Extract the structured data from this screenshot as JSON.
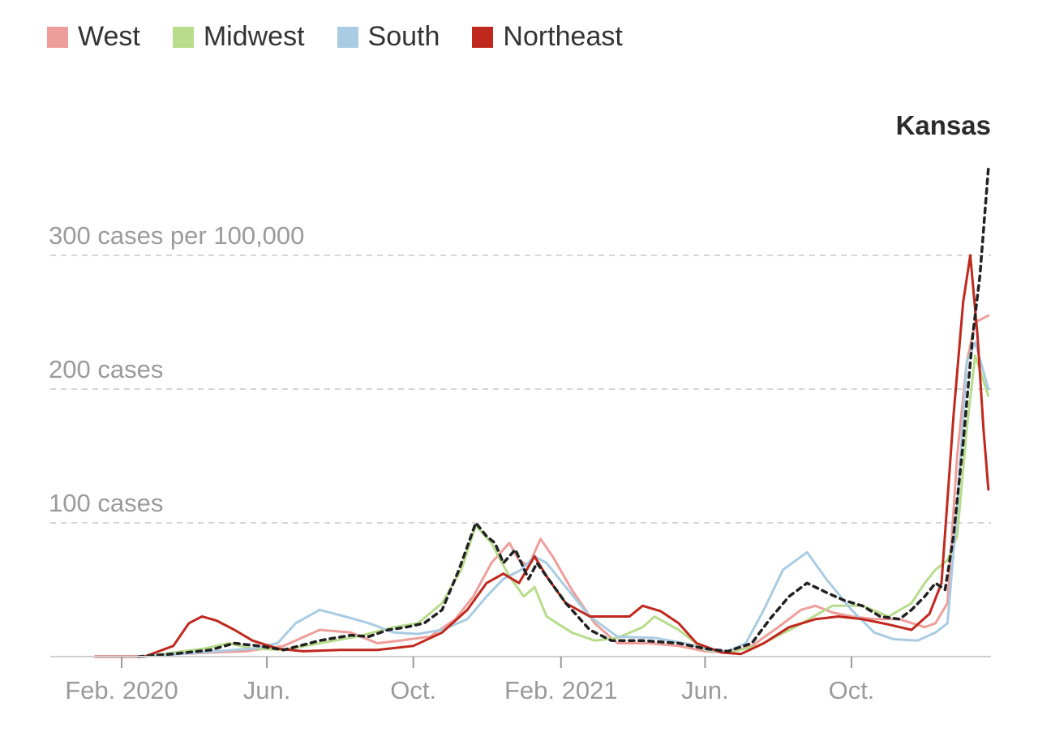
{
  "legend": {
    "items": [
      {
        "label": "West",
        "color": "#ee9e9a"
      },
      {
        "label": "Midwest",
        "color": "#b8dc8c"
      },
      {
        "label": "South",
        "color": "#a9cce3"
      },
      {
        "label": "Northeast",
        "color": "#c0281e"
      }
    ]
  },
  "chart_data": {
    "type": "line",
    "title": "",
    "xlabel": "",
    "ylabel": "",
    "annotation": "Kansas",
    "ylim": [
      0,
      360
    ],
    "xlim": [
      "2020-01-01",
      "2022-01-25"
    ],
    "y_ticks": [
      {
        "value": 100,
        "label": "100 cases"
      },
      {
        "value": 200,
        "label": "200 cases"
      },
      {
        "value": 300,
        "label": "300 cases per 100,000"
      }
    ],
    "x_ticks": [
      {
        "date": "2020-02-01",
        "label": "Feb. 2020"
      },
      {
        "date": "2020-06-01",
        "label": "Jun."
      },
      {
        "date": "2020-10-01",
        "label": "Oct."
      },
      {
        "date": "2021-02-01",
        "label": "Feb. 2021"
      },
      {
        "date": "2021-06-01",
        "label": "Jun."
      },
      {
        "date": "2021-10-01",
        "label": "Oct."
      }
    ],
    "grid": true,
    "legend_position": "top-left",
    "series": [
      {
        "name": "West",
        "color": "#ee9e9a",
        "dashed": false,
        "points": [
          [
            "2020-01-10",
            0
          ],
          [
            "2020-02-20",
            0
          ],
          [
            "2020-03-20",
            2
          ],
          [
            "2020-04-15",
            3
          ],
          [
            "2020-05-15",
            4
          ],
          [
            "2020-06-15",
            8
          ],
          [
            "2020-07-15",
            20
          ],
          [
            "2020-08-10",
            18
          ],
          [
            "2020-09-01",
            10
          ],
          [
            "2020-09-20",
            12
          ],
          [
            "2020-10-15",
            15
          ],
          [
            "2020-11-05",
            28
          ],
          [
            "2020-11-20",
            45
          ],
          [
            "2020-12-05",
            70
          ],
          [
            "2020-12-20",
            85
          ],
          [
            "2020-12-28",
            72
          ],
          [
            "2021-01-05",
            68
          ],
          [
            "2021-01-15",
            88
          ],
          [
            "2021-01-25",
            75
          ],
          [
            "2021-02-10",
            50
          ],
          [
            "2021-03-01",
            25
          ],
          [
            "2021-03-20",
            10
          ],
          [
            "2021-04-15",
            10
          ],
          [
            "2021-05-10",
            8
          ],
          [
            "2021-06-01",
            4
          ],
          [
            "2021-06-20",
            3
          ],
          [
            "2021-07-10",
            8
          ],
          [
            "2021-08-01",
            22
          ],
          [
            "2021-08-20",
            35
          ],
          [
            "2021-09-01",
            38
          ],
          [
            "2021-09-15",
            33
          ],
          [
            "2021-10-01",
            30
          ],
          [
            "2021-10-20",
            28
          ],
          [
            "2021-11-10",
            28
          ],
          [
            "2021-12-01",
            22
          ],
          [
            "2021-12-10",
            25
          ],
          [
            "2021-12-20",
            40
          ],
          [
            "2021-12-28",
            150
          ],
          [
            "2022-01-05",
            220
          ],
          [
            "2022-01-12",
            250
          ],
          [
            "2022-01-23",
            255
          ]
        ]
      },
      {
        "name": "Midwest",
        "color": "#b8dc8c",
        "dashed": false,
        "points": [
          [
            "2020-01-10",
            0
          ],
          [
            "2020-02-20",
            0
          ],
          [
            "2020-03-15",
            3
          ],
          [
            "2020-04-10",
            6
          ],
          [
            "2020-04-30",
            10
          ],
          [
            "2020-05-20",
            6
          ],
          [
            "2020-06-15",
            5
          ],
          [
            "2020-07-15",
            10
          ],
          [
            "2020-08-15",
            15
          ],
          [
            "2020-09-15",
            22
          ],
          [
            "2020-10-05",
            25
          ],
          [
            "2020-10-25",
            40
          ],
          [
            "2020-11-10",
            65
          ],
          [
            "2020-11-22",
            98
          ],
          [
            "2020-12-05",
            85
          ],
          [
            "2020-12-20",
            60
          ],
          [
            "2021-01-01",
            45
          ],
          [
            "2021-01-10",
            52
          ],
          [
            "2021-01-20",
            30
          ],
          [
            "2021-02-10",
            18
          ],
          [
            "2021-03-01",
            12
          ],
          [
            "2021-03-20",
            14
          ],
          [
            "2021-04-10",
            22
          ],
          [
            "2021-04-20",
            30
          ],
          [
            "2021-05-10",
            20
          ],
          [
            "2021-06-01",
            5
          ],
          [
            "2021-06-20",
            3
          ],
          [
            "2021-07-15",
            8
          ],
          [
            "2021-08-15",
            22
          ],
          [
            "2021-09-15",
            38
          ],
          [
            "2021-10-10",
            38
          ],
          [
            "2021-11-01",
            30
          ],
          [
            "2021-11-20",
            40
          ],
          [
            "2021-12-01",
            55
          ],
          [
            "2021-12-10",
            65
          ],
          [
            "2021-12-20",
            72
          ],
          [
            "2021-12-28",
            90
          ],
          [
            "2022-01-05",
            170
          ],
          [
            "2022-01-12",
            225
          ],
          [
            "2022-01-23",
            195
          ]
        ]
      },
      {
        "name": "South",
        "color": "#a9cce3",
        "dashed": false,
        "points": [
          [
            "2020-01-10",
            0
          ],
          [
            "2020-02-20",
            0
          ],
          [
            "2020-03-20",
            2
          ],
          [
            "2020-04-20",
            4
          ],
          [
            "2020-05-20",
            6
          ],
          [
            "2020-06-10",
            10
          ],
          [
            "2020-06-25",
            25
          ],
          [
            "2020-07-15",
            35
          ],
          [
            "2020-08-05",
            30
          ],
          [
            "2020-08-25",
            25
          ],
          [
            "2020-09-15",
            18
          ],
          [
            "2020-10-05",
            17
          ],
          [
            "2020-10-25",
            20
          ],
          [
            "2020-11-15",
            28
          ],
          [
            "2020-12-01",
            45
          ],
          [
            "2020-12-15",
            58
          ],
          [
            "2020-12-30",
            65
          ],
          [
            "2021-01-10",
            75
          ],
          [
            "2021-01-20",
            70
          ],
          [
            "2021-02-05",
            52
          ],
          [
            "2021-02-25",
            30
          ],
          [
            "2021-03-20",
            15
          ],
          [
            "2021-04-20",
            14
          ],
          [
            "2021-05-15",
            10
          ],
          [
            "2021-06-05",
            5
          ],
          [
            "2021-06-20",
            4
          ],
          [
            "2021-07-05",
            10
          ],
          [
            "2021-07-20",
            35
          ],
          [
            "2021-08-05",
            65
          ],
          [
            "2021-08-25",
            78
          ],
          [
            "2021-09-10",
            58
          ],
          [
            "2021-10-01",
            35
          ],
          [
            "2021-10-20",
            18
          ],
          [
            "2021-11-05",
            13
          ],
          [
            "2021-11-25",
            12
          ],
          [
            "2021-12-10",
            18
          ],
          [
            "2021-12-20",
            25
          ],
          [
            "2021-12-28",
            110
          ],
          [
            "2022-01-05",
            220
          ],
          [
            "2022-01-12",
            235
          ],
          [
            "2022-01-23",
            200
          ]
        ]
      },
      {
        "name": "Northeast",
        "color": "#c0281e",
        "dashed": false,
        "points": [
          [
            "2020-01-10",
            0
          ],
          [
            "2020-02-20",
            0
          ],
          [
            "2020-03-15",
            8
          ],
          [
            "2020-03-28",
            25
          ],
          [
            "2020-04-08",
            30
          ],
          [
            "2020-04-20",
            27
          ],
          [
            "2020-05-05",
            20
          ],
          [
            "2020-05-20",
            12
          ],
          [
            "2020-06-10",
            6
          ],
          [
            "2020-07-01",
            4
          ],
          [
            "2020-08-01",
            5
          ],
          [
            "2020-09-01",
            5
          ],
          [
            "2020-10-01",
            8
          ],
          [
            "2020-10-25",
            18
          ],
          [
            "2020-11-15",
            35
          ],
          [
            "2020-12-01",
            55
          ],
          [
            "2020-12-15",
            62
          ],
          [
            "2020-12-28",
            55
          ],
          [
            "2021-01-10",
            75
          ],
          [
            "2021-01-20",
            60
          ],
          [
            "2021-02-05",
            40
          ],
          [
            "2021-02-25",
            30
          ],
          [
            "2021-03-15",
            30
          ],
          [
            "2021-03-30",
            30
          ],
          [
            "2021-04-10",
            38
          ],
          [
            "2021-04-25",
            34
          ],
          [
            "2021-05-10",
            25
          ],
          [
            "2021-05-25",
            10
          ],
          [
            "2021-06-15",
            3
          ],
          [
            "2021-07-01",
            2
          ],
          [
            "2021-07-20",
            10
          ],
          [
            "2021-08-10",
            22
          ],
          [
            "2021-09-01",
            28
          ],
          [
            "2021-09-20",
            30
          ],
          [
            "2021-10-10",
            28
          ],
          [
            "2021-11-01",
            24
          ],
          [
            "2021-11-20",
            20
          ],
          [
            "2021-12-05",
            32
          ],
          [
            "2021-12-15",
            55
          ],
          [
            "2021-12-25",
            180
          ],
          [
            "2022-01-02",
            265
          ],
          [
            "2022-01-08",
            300
          ],
          [
            "2022-01-14",
            240
          ],
          [
            "2022-01-19",
            170
          ],
          [
            "2022-01-23",
            125
          ]
        ]
      },
      {
        "name": "Kansas",
        "color": "#222222",
        "dashed": true,
        "points": [
          [
            "2020-02-15",
            0
          ],
          [
            "2020-03-15",
            2
          ],
          [
            "2020-04-15",
            5
          ],
          [
            "2020-05-05",
            10
          ],
          [
            "2020-05-25",
            8
          ],
          [
            "2020-06-15",
            5
          ],
          [
            "2020-07-15",
            12
          ],
          [
            "2020-08-10",
            16
          ],
          [
            "2020-08-25",
            15
          ],
          [
            "2020-09-10",
            20
          ],
          [
            "2020-09-25",
            22
          ],
          [
            "2020-10-10",
            25
          ],
          [
            "2020-10-25",
            35
          ],
          [
            "2020-11-08",
            65
          ],
          [
            "2020-11-22",
            100
          ],
          [
            "2020-12-01",
            90
          ],
          [
            "2020-12-08",
            85
          ],
          [
            "2020-12-15",
            70
          ],
          [
            "2020-12-25",
            80
          ],
          [
            "2021-01-05",
            58
          ],
          [
            "2021-01-12",
            70
          ],
          [
            "2021-01-20",
            60
          ],
          [
            "2021-02-05",
            40
          ],
          [
            "2021-02-25",
            20
          ],
          [
            "2021-03-15",
            12
          ],
          [
            "2021-04-10",
            12
          ],
          [
            "2021-05-10",
            10
          ],
          [
            "2021-06-01",
            6
          ],
          [
            "2021-06-20",
            4
          ],
          [
            "2021-07-10",
            10
          ],
          [
            "2021-07-25",
            28
          ],
          [
            "2021-08-10",
            45
          ],
          [
            "2021-08-25",
            55
          ],
          [
            "2021-09-10",
            48
          ],
          [
            "2021-09-25",
            42
          ],
          [
            "2021-10-10",
            38
          ],
          [
            "2021-10-25",
            30
          ],
          [
            "2021-11-10",
            28
          ],
          [
            "2021-11-20",
            35
          ],
          [
            "2021-12-01",
            45
          ],
          [
            "2021-12-10",
            55
          ],
          [
            "2021-12-18",
            50
          ],
          [
            "2021-12-25",
            90
          ],
          [
            "2022-01-02",
            160
          ],
          [
            "2022-01-10",
            240
          ],
          [
            "2022-01-16",
            285
          ],
          [
            "2022-01-23",
            365
          ]
        ]
      }
    ]
  }
}
